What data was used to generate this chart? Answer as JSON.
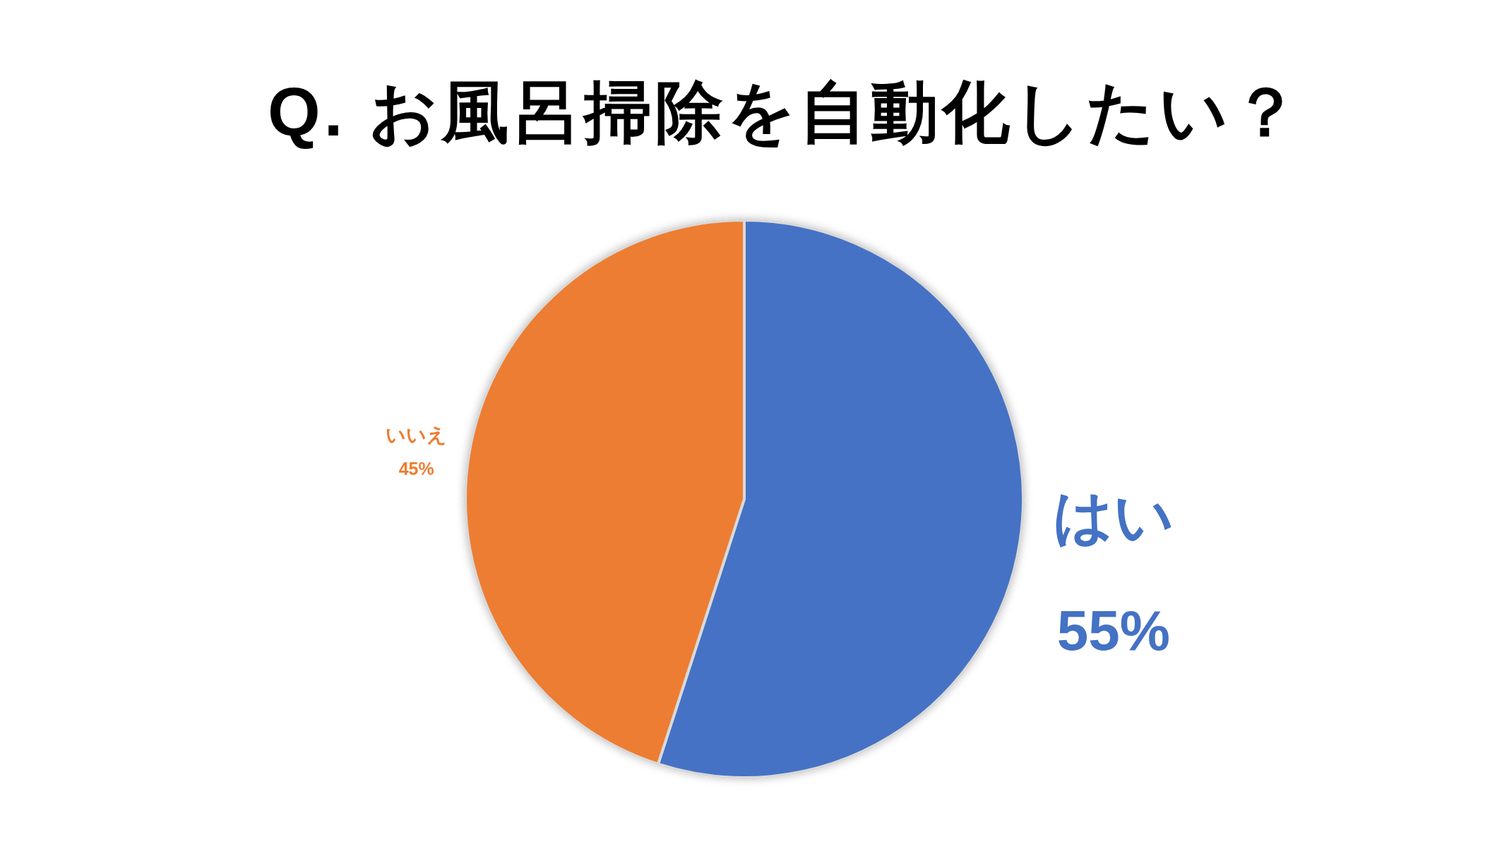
{
  "chart_data": {
    "type": "pie",
    "title": "Q. お風呂掃除を自動化したい？",
    "categories": [
      "はい",
      "いいえ"
    ],
    "values": [
      55,
      45
    ],
    "colors": [
      "#4472c4",
      "#ed7d31"
    ],
    "value_labels": [
      "55%",
      "45%"
    ]
  }
}
